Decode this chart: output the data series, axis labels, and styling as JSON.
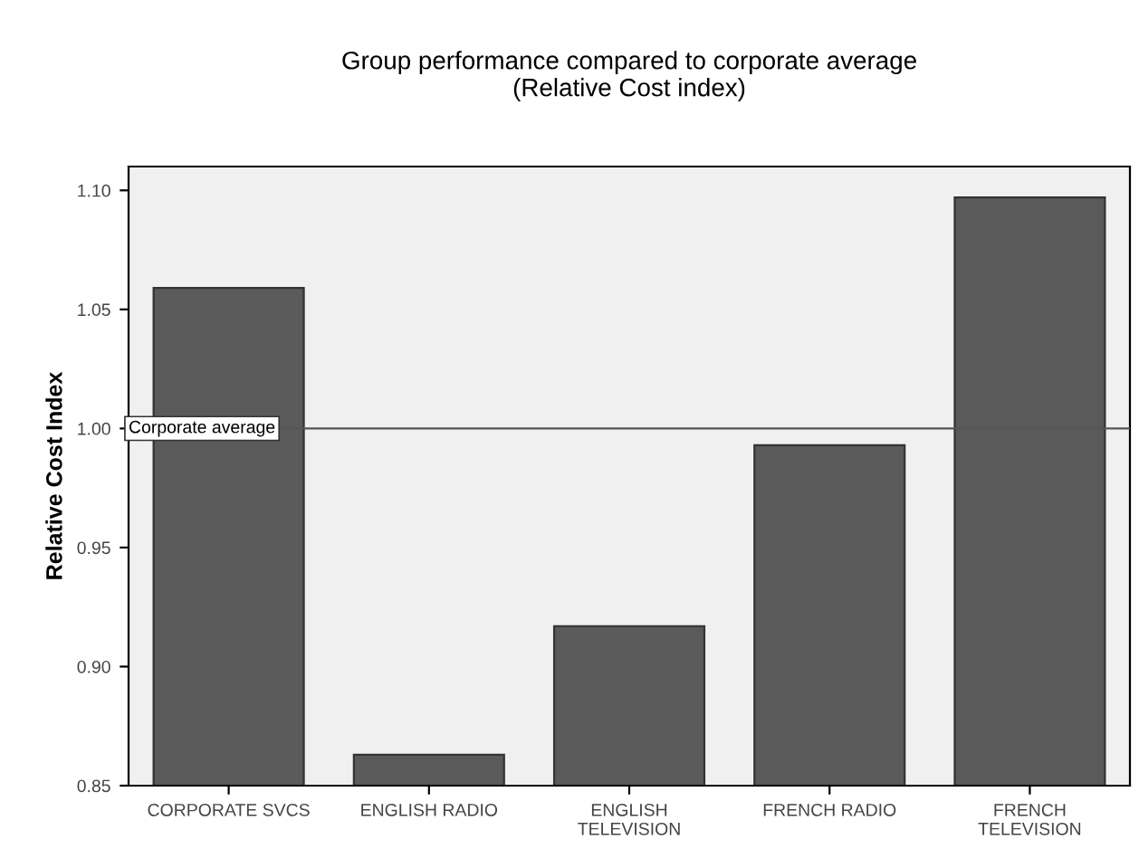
{
  "chart_data": {
    "type": "bar",
    "title": "Group performance compared to corporate average\n(Relative Cost index)",
    "ylabel": "Relative Cost Index",
    "categories": [
      "CORPORATE SVCS",
      "ENGLISH RADIO",
      "ENGLISH\nTELEVISION",
      "FRENCH RADIO",
      "FRENCH\nTELEVISION"
    ],
    "values": [
      1.059,
      0.863,
      0.917,
      0.993,
      1.097
    ],
    "color": "#5a5a5a",
    "ylim": [
      0.85,
      1.11
    ],
    "yticks": [
      {
        "value": 0.85,
        "label": "0.85"
      },
      {
        "value": 0.9,
        "label": "0.90"
      },
      {
        "value": 0.95,
        "label": "0.95"
      },
      {
        "value": 1.0,
        "label": "1.00"
      },
      {
        "value": 1.05,
        "label": "1.05"
      },
      {
        "value": 1.1,
        "label": "1.10"
      }
    ],
    "ref_lines": [
      {
        "axis": "y",
        "value": 1.0,
        "label": "Corporate average",
        "color": "#555555"
      }
    ],
    "grid": false,
    "legend": false
  }
}
